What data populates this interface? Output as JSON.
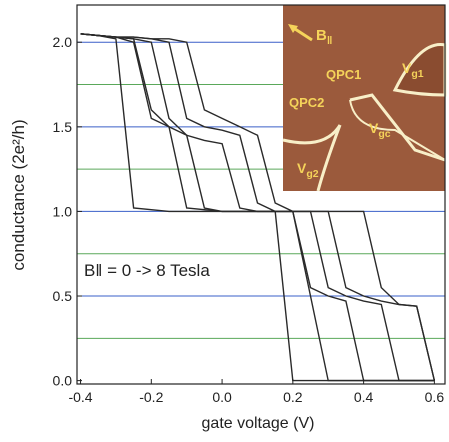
{
  "chart_data": {
    "type": "line",
    "x_label": "gate voltage (V)",
    "y_label": "conductance (2e²/h)",
    "annotation": "B‖ = 0 -> 8 Tesla",
    "inset_labels": [
      {
        "base": "B",
        "sub": "‖"
      },
      {
        "base": "QPC1"
      },
      {
        "base": "QPC2"
      },
      {
        "base": "V",
        "sub": "g1"
      },
      {
        "base": "V",
        "sub": "gc"
      },
      {
        "base": "V",
        "sub": "g2"
      }
    ],
    "x": [
      -0.4,
      -0.35,
      -0.3,
      -0.25,
      -0.2,
      -0.15,
      -0.1,
      -0.05,
      0.0,
      0.05,
      0.1,
      0.15,
      0.2,
      0.25,
      0.3,
      0.35,
      0.4,
      0.45,
      0.5,
      0.55,
      0.6
    ],
    "series": [
      {
        "color": "#2a2a2a",
        "values": [
          2.05,
          2.04,
          2.02,
          1.02,
          1.01,
          1.0,
          1.0,
          1.0,
          1.0,
          1.0,
          1.0,
          1.0,
          0.0,
          0.0,
          0.0,
          0.0,
          0.0,
          0.0,
          0.0,
          0.0,
          0.0
        ]
      },
      {
        "color": "#2a2a2a",
        "values": [
          2.05,
          2.04,
          2.03,
          2.0,
          1.55,
          1.5,
          1.02,
          1.01,
          1.0,
          1.0,
          1.0,
          1.0,
          1.0,
          0.5,
          0.0,
          0.0,
          0.0,
          0.0,
          0.0,
          0.0,
          0.0
        ]
      },
      {
        "color": "#2a2a2a",
        "values": [
          2.05,
          2.04,
          2.03,
          2.02,
          1.6,
          1.5,
          1.45,
          1.02,
          1.0,
          1.0,
          1.0,
          1.0,
          1.0,
          0.55,
          0.5,
          0.47,
          0.0,
          0.0,
          0.0,
          0.0,
          0.0
        ]
      },
      {
        "color": "#2a2a2a",
        "values": [
          2.05,
          2.04,
          2.03,
          2.02,
          2.0,
          1.55,
          1.45,
          1.42,
          1.4,
          1.02,
          1.0,
          1.0,
          1.0,
          1.0,
          0.55,
          0.5,
          0.47,
          0.45,
          0.0,
          0.0,
          0.0
        ]
      },
      {
        "color": "#2a2a2a",
        "values": [
          2.05,
          2.04,
          2.03,
          2.03,
          2.02,
          2.0,
          1.55,
          1.5,
          1.48,
          1.45,
          1.05,
          1.0,
          1.0,
          1.0,
          1.0,
          0.55,
          0.5,
          0.47,
          0.45,
          0.44,
          0.0
        ]
      },
      {
        "color": "#2a2a2a",
        "values": [
          2.05,
          2.04,
          2.03,
          2.03,
          2.02,
          2.02,
          2.0,
          1.6,
          1.55,
          1.5,
          1.45,
          1.05,
          1.0,
          1.0,
          1.0,
          1.0,
          1.0,
          0.55,
          0.45,
          0.44,
          0.0
        ]
      }
    ],
    "xlim": [
      -0.41,
      0.63
    ],
    "ylim": [
      -0.02,
      2.22
    ],
    "xticks": [
      -0.4,
      -0.2,
      {
        "value": 0,
        "label": "0.0"
      },
      0.2,
      0.4,
      0.6
    ],
    "yticks": [
      {
        "value": 0,
        "label": "0.0"
      },
      0.5,
      {
        "value": 1,
        "label": "1.0"
      },
      1.5,
      {
        "value": 2,
        "label": "2.0"
      }
    ],
    "blue_lines": [
      0.5,
      1,
      1.5,
      2
    ],
    "blue_line_color": "#3a5fc8",
    "green_lines": [
      0.25,
      0.75,
      1.25,
      1.75
    ],
    "green_line_color": "#5aa85a"
  }
}
